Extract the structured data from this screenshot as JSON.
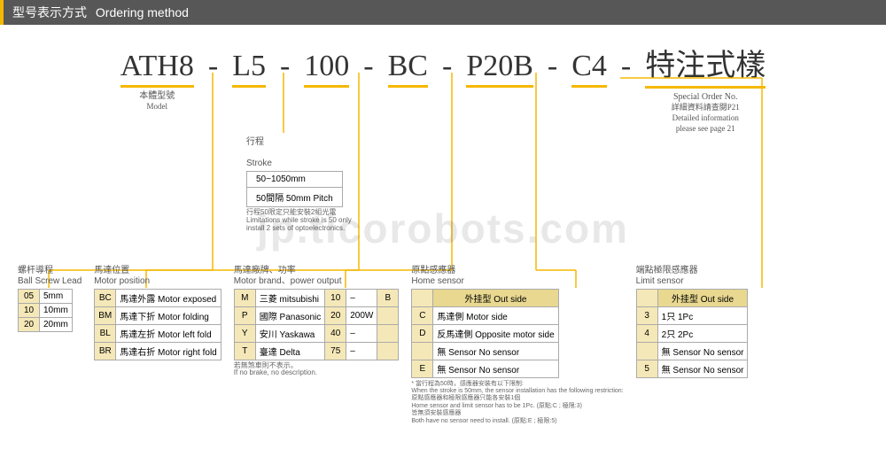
{
  "header": {
    "cn": "型号表示方式",
    "en": "Ordering method"
  },
  "code": {
    "segments": [
      "ATH8",
      "L5",
      "100",
      "BC",
      "P20B",
      "C4",
      "特注式樣"
    ],
    "labels": [
      {
        "cn": "本體型號",
        "en": "Model"
      },
      null,
      null,
      null,
      null,
      null,
      {
        "cn": "Special Order No.",
        "en": "詳細資料請查閱P21\nDetailed information\nplease see page 21"
      }
    ]
  },
  "stroke": {
    "title_cn": "行程",
    "title_en": "Stroke",
    "rows": [
      "50~1050mm",
      "50間隔 50mm Pitch"
    ],
    "note": "行程50限定只能安裝2組光電\nLimitations while stroke is 50 only\ninstall 2 sets of optoelectronics."
  },
  "lead": {
    "title_cn": "螺杆導程",
    "title_en": "Ball Screw Lead",
    "rows": [
      [
        "05",
        "5mm"
      ],
      [
        "10",
        "10mm"
      ],
      [
        "20",
        "20mm"
      ]
    ]
  },
  "motorpos": {
    "title_cn": "馬達位置",
    "title_en": "Motor position",
    "rows": [
      [
        "BC",
        "馬達外露 Motor exposed"
      ],
      [
        "BM",
        "馬達下折 Motor folding"
      ],
      [
        "BL",
        "馬達左折 Motor left fold"
      ],
      [
        "BR",
        "馬達右折 Motor right fold"
      ]
    ]
  },
  "brand": {
    "title_cn": "馬達廠牌、功率",
    "title_en": "Motor brand、power output",
    "rows": [
      [
        "M",
        "三菱 mitsubishi",
        "10",
        "–",
        "B"
      ],
      [
        "P",
        "國際 Panasonic",
        "20",
        "200W",
        ""
      ],
      [
        "Y",
        "安川 Yaskawa",
        "40",
        "–",
        ""
      ],
      [
        "T",
        "臺達 Delta",
        "75",
        "–",
        ""
      ]
    ],
    "note": "若無煞車則不表示。\nIf no brake, no description."
  },
  "home": {
    "title_cn": "原點感應器",
    "title_en": "Home sensor",
    "rows": [
      [
        "",
        "外挂型 Out side"
      ],
      [
        "C",
        "馬達側 Motor side"
      ],
      [
        "D",
        "反馬達側 Opposite motor side"
      ],
      [
        "",
        "無 Sensor No sensor"
      ],
      [
        "E",
        "無 Sensor No sensor"
      ]
    ],
    "foot": "* 當行程為50時，感應器安裝有以下限制:\nWhen the stroke is 50mm, the sensor installation has the following restriction:\n原點感應器和極限感應器只能各安裝1個\nHome sensor and limit sensor has to be 1Pc. (原點:C ; 極限:3)\n皆無須安裝感應器\nBoth have no sensor need to install. (原點:E ; 極限:5)"
  },
  "limit": {
    "title_cn": "端點極限感應器",
    "title_en": "Limit sensor",
    "rows": [
      [
        "",
        "外挂型 Out side"
      ],
      [
        "3",
        "1只 1Pc"
      ],
      [
        "4",
        "2只 2Pc"
      ],
      [
        "",
        "無 Sensor No sensor"
      ],
      [
        "5",
        "無 Sensor No sensor"
      ]
    ]
  },
  "watermark": "jp.ticorobots.com",
  "colors": {
    "accent": "#f5b800",
    "codebg": "#f5e8b8",
    "hdrbg": "#e8d890"
  }
}
